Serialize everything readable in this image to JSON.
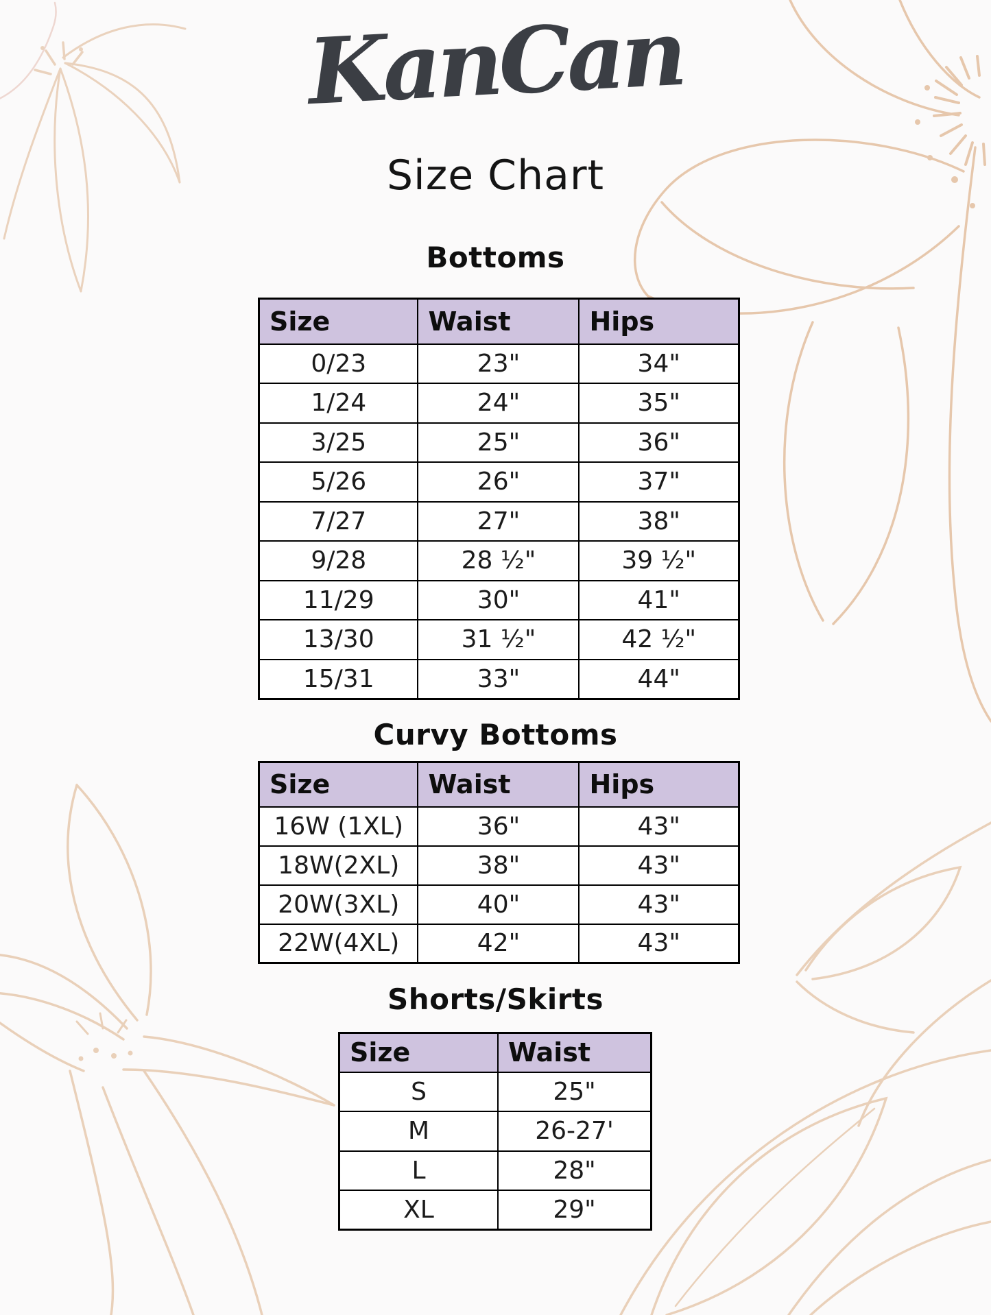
{
  "brand": "KanCan",
  "title": "Size Chart",
  "sections": [
    {
      "heading": "Bottoms",
      "columns": [
        "Size",
        "Waist",
        "Hips"
      ],
      "rows": [
        [
          "0/23",
          "23\"",
          "34\""
        ],
        [
          "1/24",
          "24\"",
          "35\""
        ],
        [
          "3/25",
          "25\"",
          "36\""
        ],
        [
          "5/26",
          "26\"",
          "37\""
        ],
        [
          "7/27",
          "27\"",
          "38\""
        ],
        [
          "9/28",
          "28 ½\"",
          "39 ½\""
        ],
        [
          "11/29",
          "30\"",
          "41\""
        ],
        [
          "13/30",
          "31 ½\"",
          "42 ½\""
        ],
        [
          "15/31",
          "33\"",
          "44\""
        ]
      ]
    },
    {
      "heading": "Curvy Bottoms",
      "columns": [
        "Size",
        "Waist",
        "Hips"
      ],
      "rows": [
        [
          "16W (1XL)",
          "36\"",
          "43\""
        ],
        [
          "18W(2XL)",
          "38\"",
          "43\""
        ],
        [
          "20W(3XL)",
          "40\"",
          "43\""
        ],
        [
          "22W(4XL)",
          "42\"",
          "43\""
        ]
      ]
    },
    {
      "heading": "Shorts/Skirts",
      "columns": [
        "Size",
        "Waist"
      ],
      "rows": [
        [
          "S",
          "25\""
        ],
        [
          "M",
          "26-27'"
        ],
        [
          "L",
          "28\""
        ],
        [
          "XL",
          "29\""
        ]
      ]
    }
  ],
  "colors": {
    "header_bg": "#cfc3df",
    "table_border": "#000000",
    "floral_line": "#e7c9ae",
    "logo_text": "#3b3e44"
  }
}
